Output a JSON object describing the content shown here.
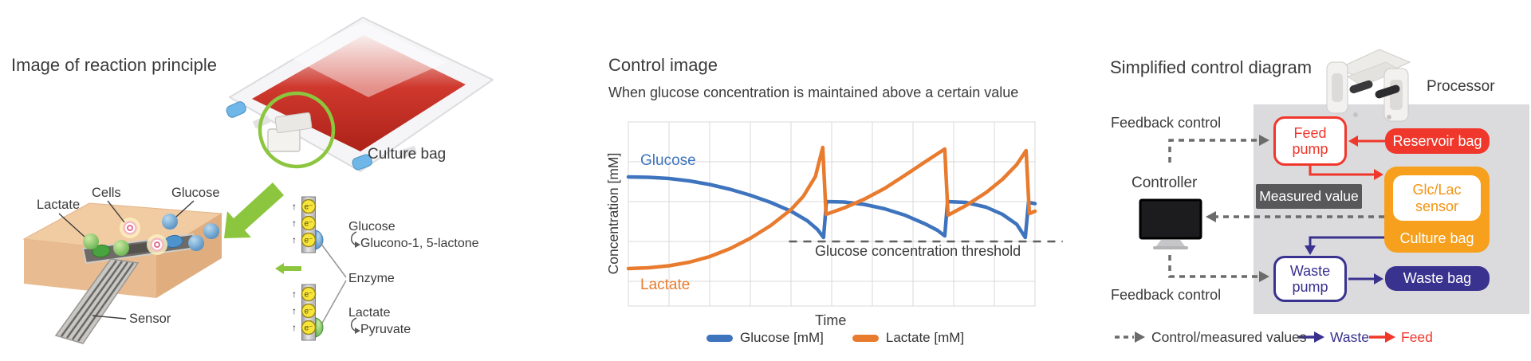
{
  "left": {
    "title": "Image of reaction principle",
    "culture_bag_label": "Culture bag",
    "scene": {
      "lactate": "Lactate",
      "cells": "Cells",
      "glucose": "Glucose",
      "sensor": "Sensor"
    },
    "reactions": {
      "electron_symbol": "e⁻",
      "up_arrow_icon": "↑",
      "glucose_substrate": "Glucose",
      "glucose_product": "Glucono-1, 5-lactone",
      "enzyme": "Enzyme",
      "lactate_substrate": "Lactate",
      "lactate_product": "Pyruvate"
    }
  },
  "chart": {
    "title": "Control image",
    "subtitle": "When glucose concentration is maintained above a certain value",
    "ylabel": "Concentration [mM]",
    "xlabel": "Time",
    "glucose_inline": "Glucose",
    "lactate_inline": "Lactate",
    "threshold_label": "Glucose concentration threshold",
    "legend": [
      {
        "label": "Glucose [mM]",
        "color": "#3E74BE"
      },
      {
        "label": "Lactate [mM]",
        "color": "#E87B2E"
      }
    ]
  },
  "chart_data": {
    "type": "line",
    "title": "Control image",
    "xlabel": "Time",
    "ylabel": "Concentration [mM]",
    "xlim": [
      0,
      10
    ],
    "ylim": [
      0,
      4.62
    ],
    "grid": true,
    "grid_y_values": [
      0.62,
      1.62,
      2.62,
      3.62
    ],
    "threshold": {
      "value": 1.62,
      "x_start": 3.95,
      "x_end": 10.68,
      "label": "Glucose concentration threshold"
    },
    "series": [
      {
        "name": "Glucose [mM]",
        "color": "#3E74BE",
        "x": [
          0,
          0.5,
          1,
          1.5,
          2,
          2.5,
          3,
          3.5,
          4,
          4.4,
          4.65,
          4.8,
          4.87,
          5.3,
          5.8,
          6.3,
          6.8,
          7.3,
          7.6,
          7.78,
          7.85,
          8.3,
          8.8,
          9.2,
          9.55,
          9.76,
          9.84,
          10
        ],
        "y": [
          3.24,
          3.23,
          3.2,
          3.14,
          3.05,
          2.93,
          2.78,
          2.6,
          2.38,
          2.14,
          1.92,
          1.72,
          2.62,
          2.61,
          2.55,
          2.44,
          2.28,
          2.06,
          1.9,
          1.76,
          2.62,
          2.6,
          2.48,
          2.3,
          2.05,
          1.72,
          2.6,
          2.57
        ]
      },
      {
        "name": "Lactate [mM]",
        "color": "#E87B2E",
        "x": [
          0,
          0.5,
          1,
          1.5,
          2,
          2.5,
          3,
          3.5,
          4,
          4.3,
          4.6,
          4.78,
          4.86,
          5.3,
          5.8,
          6.3,
          6.8,
          7.3,
          7.6,
          7.78,
          7.86,
          8.3,
          8.8,
          9.2,
          9.55,
          9.78,
          9.86,
          10
        ],
        "y": [
          0.94,
          0.96,
          1.01,
          1.1,
          1.24,
          1.44,
          1.7,
          2.02,
          2.42,
          2.75,
          3.25,
          3.98,
          2.3,
          2.46,
          2.68,
          2.95,
          3.28,
          3.62,
          3.82,
          3.94,
          2.28,
          2.52,
          2.85,
          3.18,
          3.55,
          3.9,
          2.32,
          2.38
        ]
      }
    ],
    "legend_position": "bottom"
  },
  "diagram": {
    "title": "Simplified control diagram",
    "processor": "Processor",
    "controller": "Controller",
    "feedback_top": "Feedback control",
    "feedback_bottom": "Feedback control",
    "measured_value": "Measured value",
    "feed_pump": "Feed pump",
    "reservoir_bag": "Reservoir bag",
    "glclac_sensor": "Glc/Lac sensor",
    "culture_bag": "Culture bag",
    "waste_pump": "Waste pump",
    "waste_bag": "Waste bag",
    "legend": {
      "control": "Control/measured values",
      "waste": "Waste",
      "feed": "Feed"
    },
    "colors": {
      "feed": "#F0372B",
      "waste": "#39328F",
      "culture": "#F6A01D",
      "measured": "#58585A",
      "gray_panel": "#dbdbde",
      "green": "#8CC63F"
    }
  }
}
